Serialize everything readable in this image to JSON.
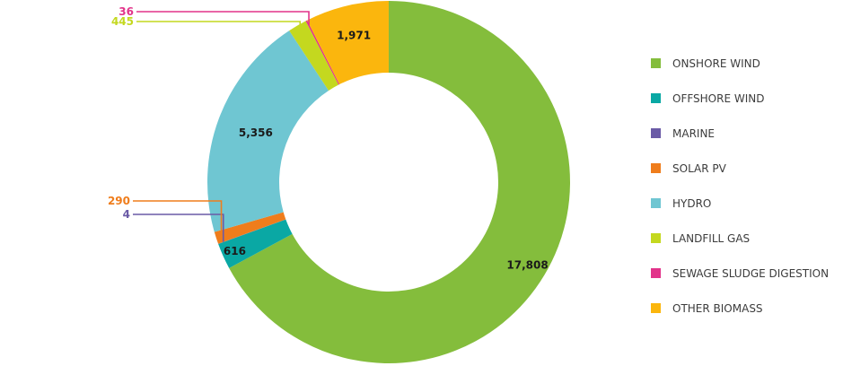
{
  "chart_data": {
    "type": "pie",
    "donut": true,
    "legend_position": "right",
    "categories": [
      "ONSHORE WIND",
      "OFFSHORE WIND",
      "MARINE",
      "SOLAR PV",
      "HYDRO",
      "LANDFILL GAS",
      "SEWAGE SLUDGE DIGESTION",
      "OTHER BIOMASS"
    ],
    "values": [
      17808,
      616,
      4,
      290,
      5356,
      445,
      36,
      1971
    ],
    "labels": [
      "17,808",
      "616",
      "4",
      "290",
      "5,356",
      "445",
      "36",
      "1,971"
    ],
    "colors": [
      "#84bd3c",
      "#0aa8a4",
      "#6a5aa6",
      "#ef7d1c",
      "#6fc6d2",
      "#c4d81f",
      "#e2338a",
      "#fbb60d"
    ]
  }
}
